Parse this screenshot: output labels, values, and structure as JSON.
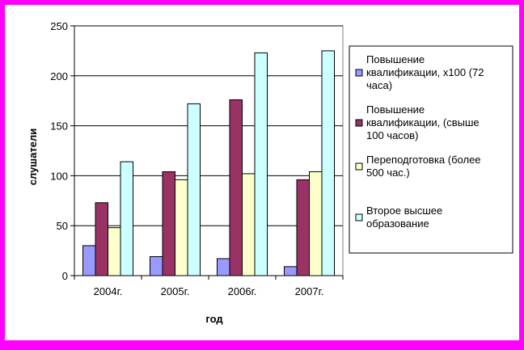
{
  "chart_data": {
    "type": "bar",
    "xlabel": "год",
    "ylabel": "слушатели",
    "ylim": [
      0,
      250
    ],
    "yticks": [
      0,
      50,
      100,
      150,
      200,
      250
    ],
    "grid": true,
    "legend_position": "right",
    "categories": [
      "2004г.",
      "2005г.",
      "2006г.",
      "2007г."
    ],
    "series": [
      {
        "name": "Повышение квалификации, х100 (72 часа)",
        "name_lines": [
          "Повышение",
          "квалификации, х100 (72",
          "часа)"
        ],
        "color": "#9999ff",
        "values": [
          30,
          19,
          17,
          9
        ]
      },
      {
        "name": "Повышение квалификации, (свыше 100 часов)",
        "name_lines": [
          "Повышение",
          "квалификации, (свыше",
          "100 часов)"
        ],
        "color": "#993366",
        "values": [
          73,
          104,
          176,
          96
        ]
      },
      {
        "name": "Переподготовка (более 500 час.)",
        "name_lines": [
          "Переподготовка (более",
          "500 час.)"
        ],
        "color": "#ffffcc",
        "values": [
          48,
          96,
          102,
          104
        ]
      },
      {
        "name": "Второе высшее образование",
        "name_lines": [
          "Второе высшее",
          "образование"
        ],
        "color": "#ccffff",
        "values": [
          114,
          172,
          223,
          225
        ]
      }
    ]
  }
}
